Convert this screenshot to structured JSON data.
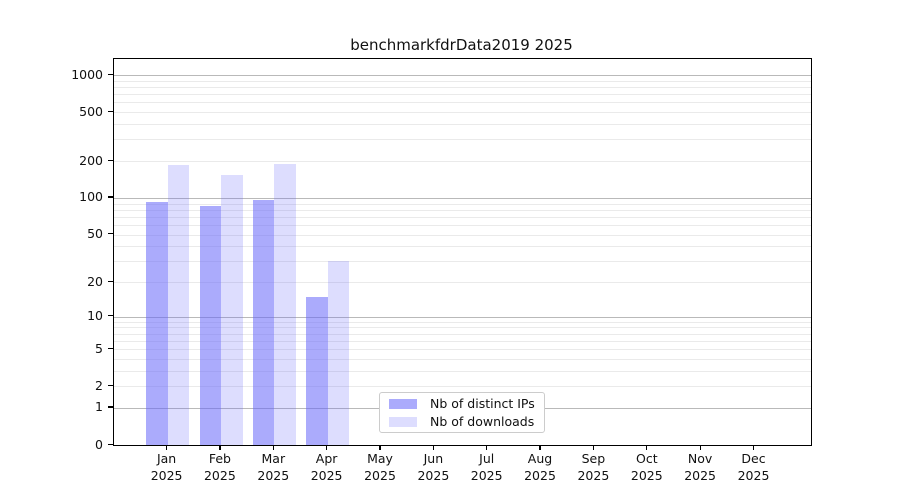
{
  "chart_data": {
    "type": "bar",
    "title": "benchmarkfdrData2019 2025",
    "x_tick_months": [
      "Jan",
      "Feb",
      "Mar",
      "Apr",
      "May",
      "Jun",
      "Jul",
      "Aug",
      "Sep",
      "Oct",
      "Nov",
      "Dec"
    ],
    "x_tick_year": "2025",
    "series": [
      {
        "name": "Nb of distinct IPs",
        "color": "rgba(102,102,250,0.55)",
        "values": [
          93,
          86,
          96,
          15,
          0,
          0,
          0,
          0,
          0,
          0,
          0,
          0
        ]
      },
      {
        "name": "Nb of downloads",
        "color": "rgba(102,102,250,0.22)",
        "values": [
          185,
          153,
          190,
          30,
          0,
          0,
          0,
          0,
          0,
          0,
          0,
          0
        ]
      }
    ],
    "yscale": "log10(value+1)",
    "ylim": [
      0,
      1350
    ],
    "yticks_labeled": [
      0,
      1,
      2,
      5,
      10,
      20,
      50,
      100,
      200,
      500,
      1000
    ],
    "grid": {
      "enabled": true,
      "major_values": [
        1,
        10,
        100,
        1000
      ],
      "major_color": "#b9b9b9",
      "minor_color": "#eaeaea"
    },
    "legend": {
      "position": "inside-lower-center"
    }
  }
}
